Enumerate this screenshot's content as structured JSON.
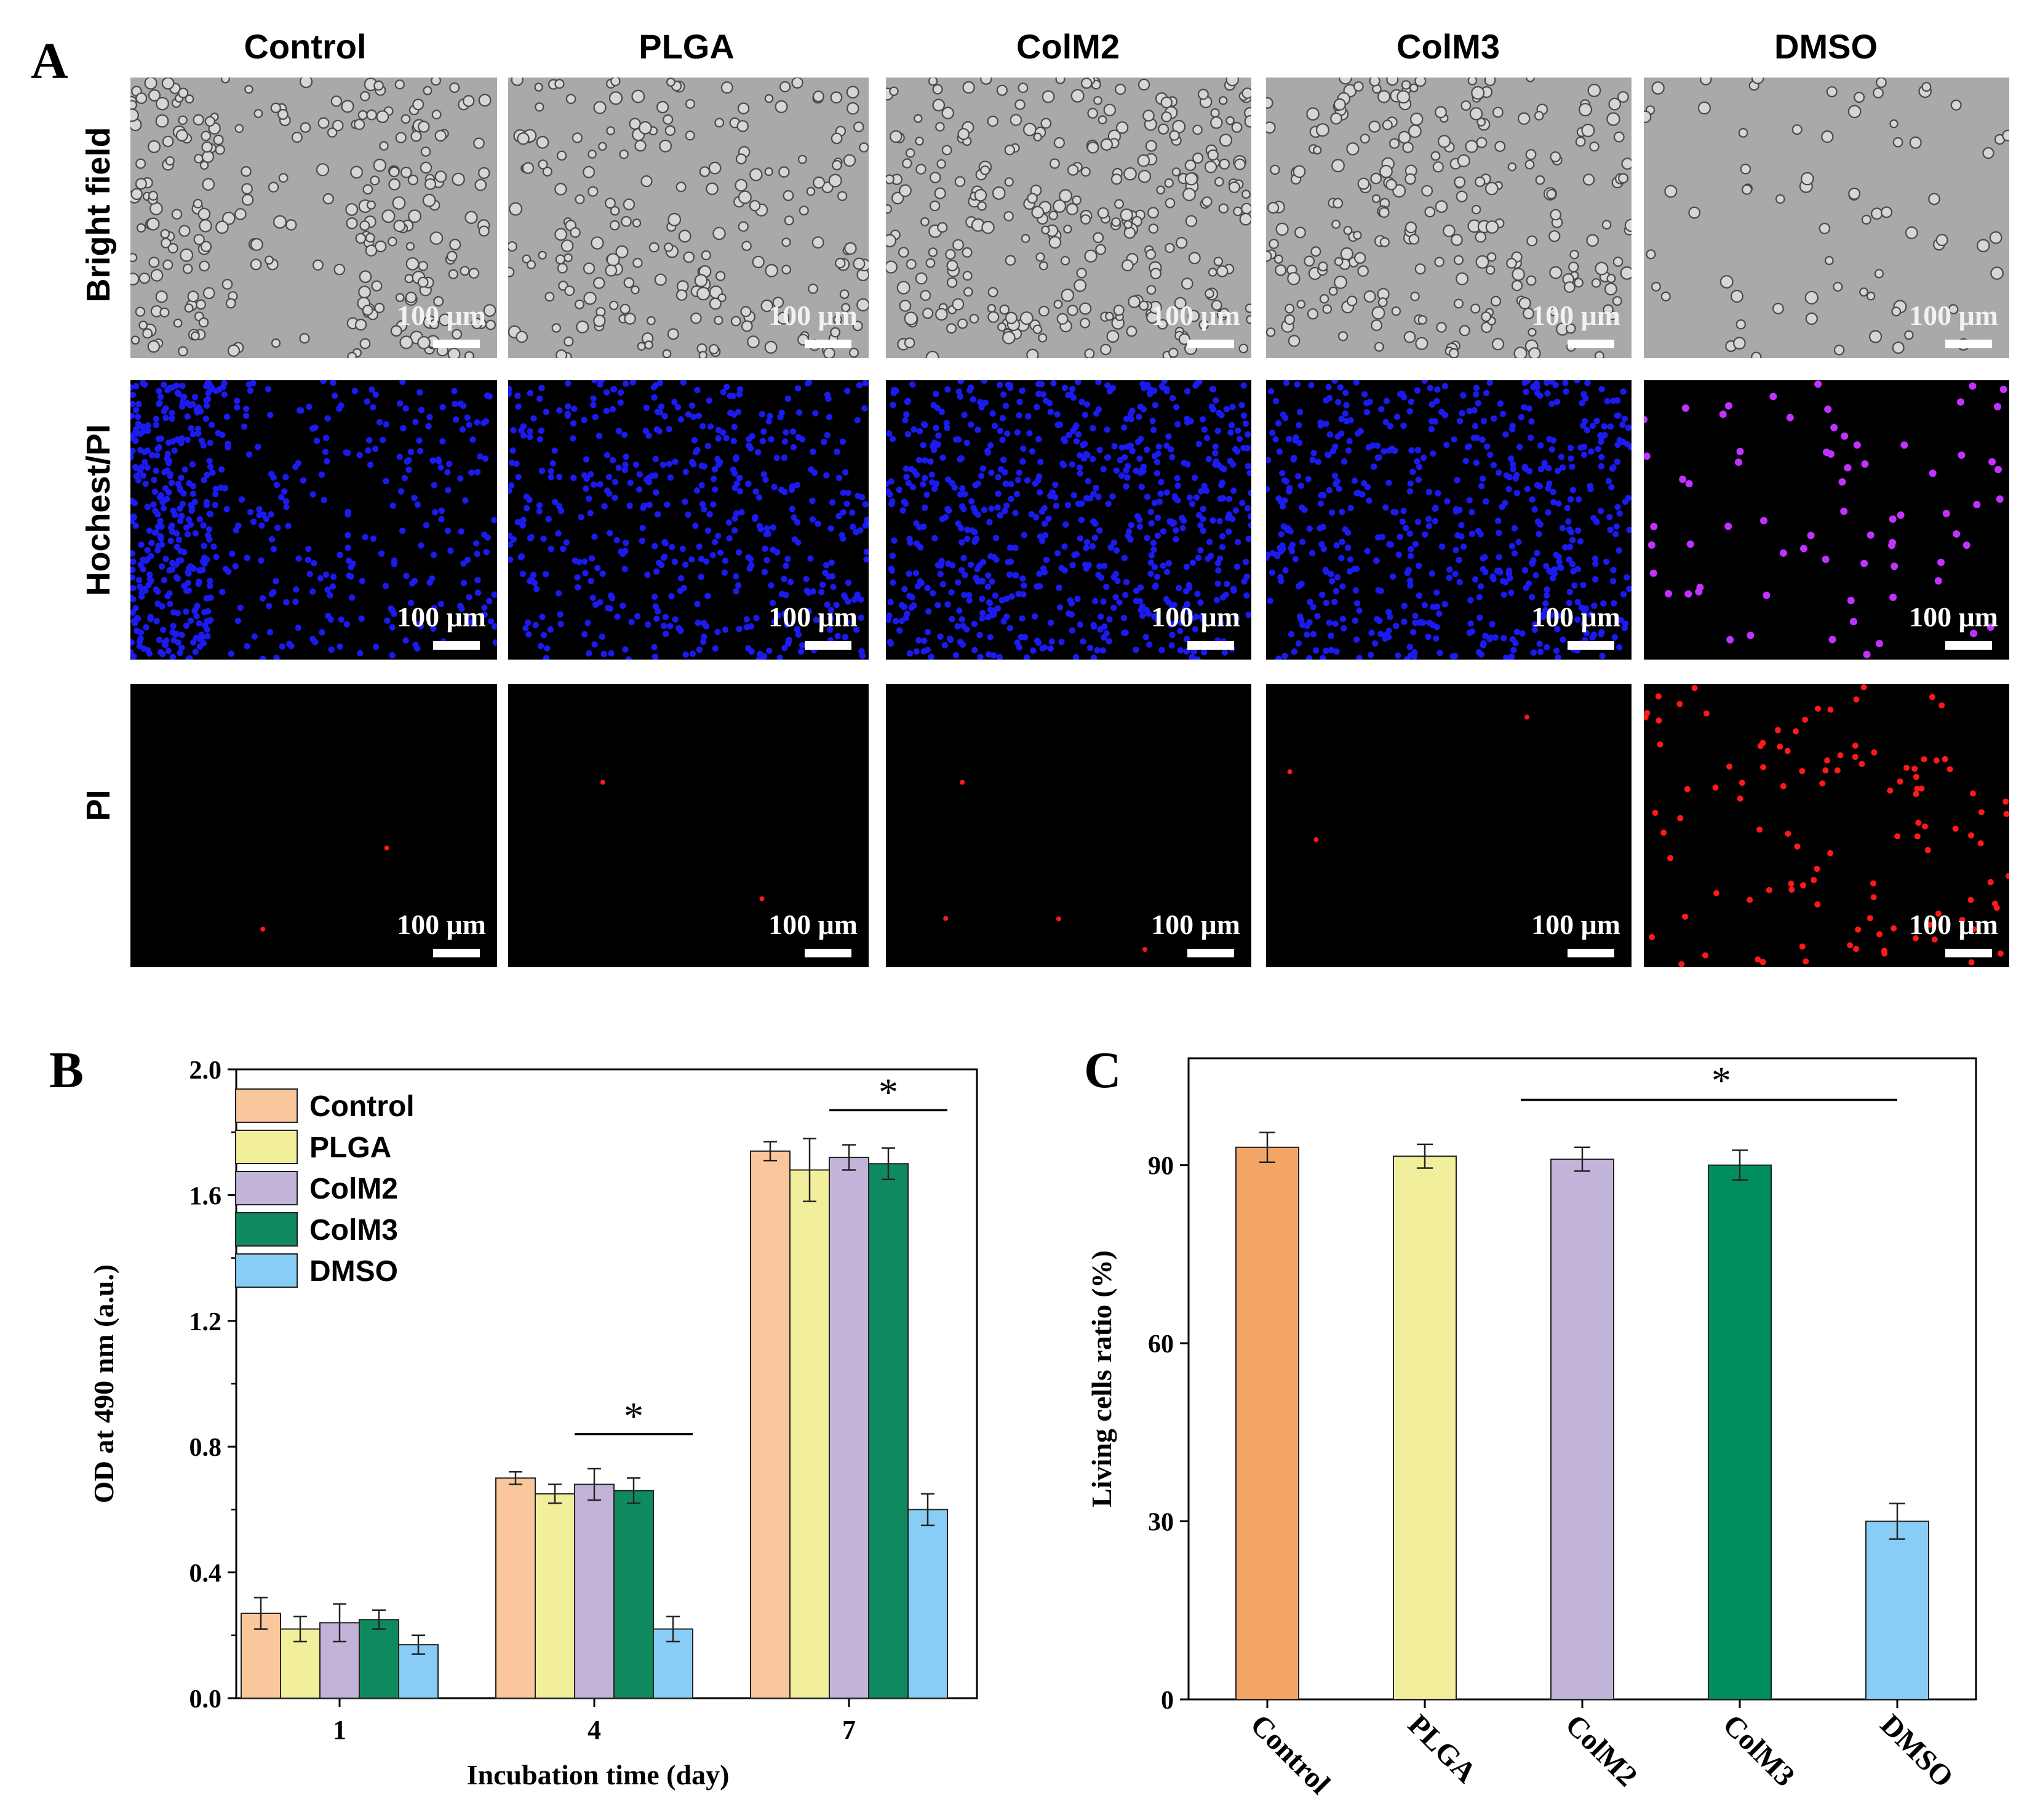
{
  "panel_a": {
    "letter": "A",
    "columns": [
      "Control",
      "PLGA",
      "ColM2",
      "ColM3",
      "DMSO"
    ],
    "rows": [
      "Bright field",
      "Hochest/PI",
      "PI"
    ],
    "scale_label": "100 μm"
  },
  "panel_b": {
    "letter": "B"
  },
  "panel_c": {
    "letter": "C"
  },
  "chart_data": [
    {
      "type": "bar",
      "xlabel": "Incubation time (day)",
      "ylabel": "OD at 490 nm (a.u.)",
      "ylim": [
        0,
        2.0
      ],
      "yticks": [
        "0.0",
        "0.4",
        "0.8",
        "1.2",
        "1.6",
        "2.0"
      ],
      "categories": [
        "1",
        "4",
        "7"
      ],
      "legend_position": "top-left",
      "series": [
        {
          "name": "Control",
          "color": "#f9c79b",
          "values": [
            0.27,
            0.7,
            1.74
          ],
          "errors": [
            0.05,
            0.02,
            0.03
          ]
        },
        {
          "name": "PLGA",
          "color": "#f1ef9b",
          "values": [
            0.22,
            0.65,
            1.68
          ],
          "errors": [
            0.04,
            0.03,
            0.1
          ]
        },
        {
          "name": "ColM2",
          "color": "#c2b3d8",
          "values": [
            0.24,
            0.68,
            1.72
          ],
          "errors": [
            0.06,
            0.05,
            0.04
          ]
        },
        {
          "name": "ColM3",
          "color": "#0f8a5e",
          "values": [
            0.25,
            0.66,
            1.7
          ],
          "errors": [
            0.03,
            0.04,
            0.05
          ]
        },
        {
          "name": "DMSO",
          "color": "#88cdf5",
          "values": [
            0.17,
            0.22,
            0.6
          ],
          "errors": [
            0.03,
            0.04,
            0.05
          ]
        }
      ],
      "annotations": [
        {
          "text": "*",
          "group": "4",
          "from_series": "ColM2",
          "to_series": "DMSO",
          "y": 0.84
        },
        {
          "text": "*",
          "group": "7",
          "from_series": "ColM2",
          "to_series": "DMSO",
          "y": 1.87
        }
      ]
    },
    {
      "type": "bar",
      "xlabel": "",
      "ylabel": "Living cells ratio (%)",
      "ylim": [
        0,
        108
      ],
      "yticks": [
        "0",
        "30",
        "60",
        "90"
      ],
      "categories": [
        "Control",
        "PLGA",
        "ColM2",
        "ColM3",
        "DMSO"
      ],
      "colors": [
        "#f4a667",
        "#f1ef9b",
        "#c2b3d8",
        "#018e5f",
        "#88cdf5"
      ],
      "values": [
        93,
        91.5,
        91,
        90,
        30
      ],
      "errors": [
        2.5,
        2,
        2,
        2.5,
        3
      ],
      "annotations": [
        {
          "text": "*",
          "from_category": "ColM2",
          "to_category": "DMSO",
          "y": 101
        }
      ]
    }
  ]
}
